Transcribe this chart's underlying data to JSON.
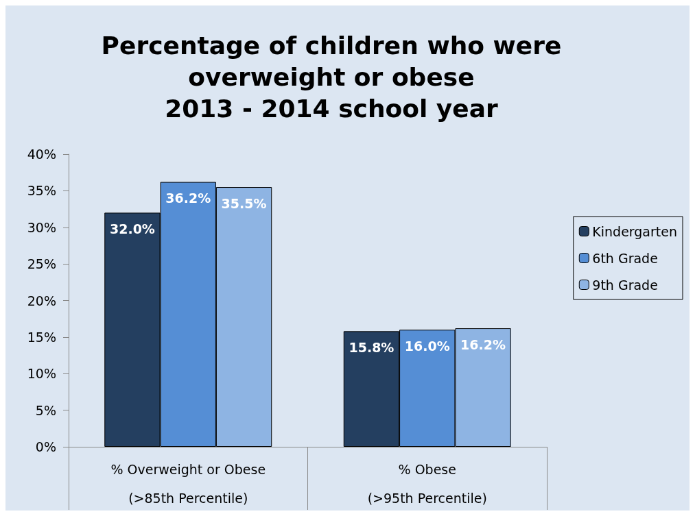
{
  "chart_data": {
    "type": "bar",
    "title": "Percentage of children who were\noverweight or obese\n2013 - 2014 school year",
    "categories": [
      "% Overweight or Obese\n\n(>85th Percentile)",
      "% Obese\n\n(>95th Percentile)"
    ],
    "series": [
      {
        "name": "Kindergarten",
        "color": "#243f60",
        "values": [
          32.0,
          15.8
        ],
        "value_labels": [
          "32.0%",
          "15.8%"
        ]
      },
      {
        "name": "6th Grade",
        "color": "#558ed5",
        "values": [
          36.2,
          16.0
        ],
        "value_labels": [
          "36.2%",
          "16.0%"
        ]
      },
      {
        "name": "9th Grade",
        "color": "#8eb4e3",
        "values": [
          35.5,
          16.2
        ],
        "value_labels": [
          "35.5%",
          "16.2%"
        ]
      }
    ],
    "ylim": [
      0,
      40
    ],
    "yticks": [
      {
        "value": 0,
        "label": "0%"
      },
      {
        "value": 5,
        "label": "5%"
      },
      {
        "value": 10,
        "label": "10%"
      },
      {
        "value": 15,
        "label": "15%"
      },
      {
        "value": 20,
        "label": "20%"
      },
      {
        "value": 25,
        "label": "25%"
      },
      {
        "value": 30,
        "label": "30%"
      },
      {
        "value": 35,
        "label": "35%"
      },
      {
        "value": 40,
        "label": "40%"
      }
    ],
    "grid": false,
    "legend": "right"
  }
}
